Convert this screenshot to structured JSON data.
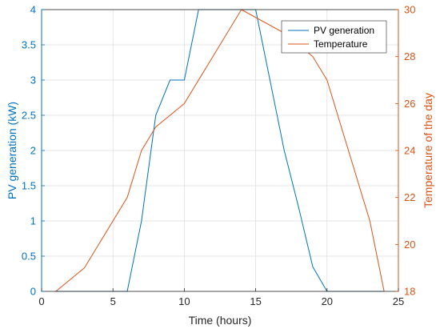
{
  "chart_data": {
    "type": "line",
    "xlabel": "Time (hours)",
    "ylabel_left": "PV generation (kW)",
    "ylabel_right": "Temperature of the day",
    "xlim": [
      0,
      25
    ],
    "ylim_left": [
      0,
      4
    ],
    "ylim_right": [
      18,
      30
    ],
    "grid": true,
    "legend_position": "top-right",
    "x_ticks": [
      "0",
      "5",
      "10",
      "15",
      "20",
      "25"
    ],
    "y_left_ticks": [
      "0",
      "0.5",
      "1",
      "1.5",
      "2",
      "2.5",
      "3",
      "3.5",
      "4"
    ],
    "y_right_ticks": [
      "18",
      "20",
      "22",
      "24",
      "26",
      "28",
      "30"
    ],
    "x_tick_values": [
      0,
      5,
      10,
      15,
      20,
      25
    ],
    "y_left_tick_values": [
      0,
      0.5,
      1,
      1.5,
      2,
      2.5,
      3,
      3.5,
      4
    ],
    "y_right_tick_values": [
      18,
      20,
      22,
      24,
      26,
      28,
      30
    ],
    "series": [
      {
        "name": "PV generation",
        "axis": "left",
        "color": "#0072BD",
        "x": [
          1,
          2,
          3,
          4,
          5,
          6,
          7,
          8,
          9,
          10,
          11,
          12,
          13,
          14,
          15,
          16,
          17,
          18,
          19,
          20,
          21,
          22,
          23,
          24
        ],
        "values": [
          0,
          0,
          0,
          0,
          0,
          0,
          1.0,
          2.5,
          3.0,
          3.0,
          4.0,
          4.0,
          4.0,
          4.0,
          4.0,
          3.0,
          2.0,
          1.2,
          0.35,
          0,
          0,
          0,
          0,
          0
        ]
      },
      {
        "name": "Temperature",
        "axis": "right",
        "color": "#D95319",
        "x": [
          1,
          3,
          6,
          7,
          8,
          10,
          14,
          17,
          19,
          20,
          23,
          24
        ],
        "values": [
          18,
          19,
          22,
          24,
          25,
          26,
          30,
          29,
          28,
          27,
          21,
          18
        ]
      }
    ]
  }
}
